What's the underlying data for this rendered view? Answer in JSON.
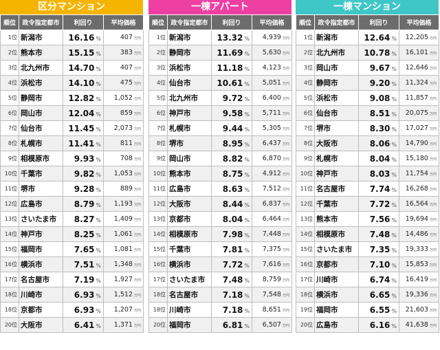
{
  "columns": {
    "rank": "順位",
    "city": "政令指定都市",
    "yield": "利回り",
    "price": "平均価格",
    "pct": "%",
    "unit": "万円",
    "rank_suffix": "位"
  },
  "panels": [
    {
      "title": "区分マンション",
      "color": "#f5b400",
      "rows": [
        {
          "rank": "1",
          "city": "新潟市",
          "yield": "16.16",
          "price": "407"
        },
        {
          "rank": "2",
          "city": "熊本市",
          "yield": "15.15",
          "price": "383"
        },
        {
          "rank": "3",
          "city": "北九州市",
          "yield": "14.70",
          "price": "407"
        },
        {
          "rank": "4",
          "city": "浜松市",
          "yield": "14.10",
          "price": "475"
        },
        {
          "rank": "5",
          "city": "静岡市",
          "yield": "12.82",
          "price": "1,052"
        },
        {
          "rank": "6",
          "city": "岡山市",
          "yield": "12.04",
          "price": "859"
        },
        {
          "rank": "7",
          "city": "仙台市",
          "yield": "11.45",
          "price": "2,073"
        },
        {
          "rank": "8",
          "city": "札幌市",
          "yield": "11.41",
          "price": "811"
        },
        {
          "rank": "9",
          "city": "相模原市",
          "yield": "9.93",
          "price": "708"
        },
        {
          "rank": "10",
          "city": "千葉市",
          "yield": "9.82",
          "price": "1,053"
        },
        {
          "rank": "11",
          "city": "堺市",
          "yield": "9.28",
          "price": "889"
        },
        {
          "rank": "12",
          "city": "広島市",
          "yield": "8.79",
          "price": "1,193"
        },
        {
          "rank": "13",
          "city": "さいたま市",
          "yield": "8.27",
          "price": "1,409"
        },
        {
          "rank": "14",
          "city": "神戸市",
          "yield": "8.25",
          "price": "1,061"
        },
        {
          "rank": "15",
          "city": "福岡市",
          "yield": "7.65",
          "price": "1,081"
        },
        {
          "rank": "16",
          "city": "横浜市",
          "yield": "7.51",
          "price": "1,348"
        },
        {
          "rank": "17",
          "city": "名古屋市",
          "yield": "7.19",
          "price": "1,927"
        },
        {
          "rank": "18",
          "city": "川崎市",
          "yield": "6.93",
          "price": "1,512"
        },
        {
          "rank": "18",
          "city": "京都市",
          "yield": "6.93",
          "price": "1,207"
        },
        {
          "rank": "20",
          "city": "大阪市",
          "yield": "6.41",
          "price": "1,371"
        }
      ]
    },
    {
      "title": "一棟アパート",
      "color": "#ee3fa2",
      "rows": [
        {
          "rank": "1",
          "city": "新潟市",
          "yield": "13.32",
          "price": "4,939"
        },
        {
          "rank": "2",
          "city": "静岡市",
          "yield": "11.69",
          "price": "5,630"
        },
        {
          "rank": "3",
          "city": "浜松市",
          "yield": "11.18",
          "price": "4,123"
        },
        {
          "rank": "4",
          "city": "仙台市",
          "yield": "10.61",
          "price": "5,051"
        },
        {
          "rank": "5",
          "city": "北九州市",
          "yield": "9.72",
          "price": "6,400"
        },
        {
          "rank": "6",
          "city": "神戸市",
          "yield": "9.58",
          "price": "5,711"
        },
        {
          "rank": "7",
          "city": "札幌市",
          "yield": "9.44",
          "price": "5,305"
        },
        {
          "rank": "8",
          "city": "堺市",
          "yield": "8.95",
          "price": "6,437"
        },
        {
          "rank": "9",
          "city": "岡山市",
          "yield": "8.82",
          "price": "6,870"
        },
        {
          "rank": "10",
          "city": "熊本市",
          "yield": "8.75",
          "price": "4,912"
        },
        {
          "rank": "11",
          "city": "広島市",
          "yield": "8.63",
          "price": "7,512"
        },
        {
          "rank": "12",
          "city": "大阪市",
          "yield": "8.44",
          "price": "6,837"
        },
        {
          "rank": "13",
          "city": "京都市",
          "yield": "8.04",
          "price": "6,464"
        },
        {
          "rank": "14",
          "city": "相模原市",
          "yield": "7.98",
          "price": "7,448"
        },
        {
          "rank": "15",
          "city": "千葉市",
          "yield": "7.81",
          "price": "7,375"
        },
        {
          "rank": "16",
          "city": "横浜市",
          "yield": "7.72",
          "price": "7,616"
        },
        {
          "rank": "17",
          "city": "さいたま市",
          "yield": "7.48",
          "price": "8,759"
        },
        {
          "rank": "18",
          "city": "名古屋市",
          "yield": "7.18",
          "price": "7,548"
        },
        {
          "rank": "18",
          "city": "川崎市",
          "yield": "7.18",
          "price": "8,651"
        },
        {
          "rank": "20",
          "city": "福岡市",
          "yield": "6.81",
          "price": "6,507"
        }
      ]
    },
    {
      "title": "一棟マンション",
      "color": "#3fc6c7",
      "rows": [
        {
          "rank": "1",
          "city": "新潟市",
          "yield": "12.64",
          "price": "12,205"
        },
        {
          "rank": "2",
          "city": "北九州市",
          "yield": "10.78",
          "price": "16,101"
        },
        {
          "rank": "3",
          "city": "岡山市",
          "yield": "9.67",
          "price": "12,646"
        },
        {
          "rank": "4",
          "city": "静岡市",
          "yield": "9.20",
          "price": "11,324"
        },
        {
          "rank": "5",
          "city": "浜松市",
          "yield": "9.08",
          "price": "11,857"
        },
        {
          "rank": "6",
          "city": "仙台市",
          "yield": "8.51",
          "price": "20,075"
        },
        {
          "rank": "7",
          "city": "堺市",
          "yield": "8.30",
          "price": "17,027"
        },
        {
          "rank": "8",
          "city": "大阪市",
          "yield": "8.06",
          "price": "14,790"
        },
        {
          "rank": "9",
          "city": "札幌市",
          "yield": "8.04",
          "price": "15,180"
        },
        {
          "rank": "10",
          "city": "神戸市",
          "yield": "8.03",
          "price": "11,754"
        },
        {
          "rank": "11",
          "city": "名古屋市",
          "yield": "7.74",
          "price": "16,268"
        },
        {
          "rank": "12",
          "city": "千葉市",
          "yield": "7.72",
          "price": "16,564"
        },
        {
          "rank": "13",
          "city": "熊本市",
          "yield": "7.56",
          "price": "19,694"
        },
        {
          "rank": "14",
          "city": "相模原市",
          "yield": "7.48",
          "price": "14,486"
        },
        {
          "rank": "15",
          "city": "さいたま市",
          "yield": "7.35",
          "price": "19,333"
        },
        {
          "rank": "16",
          "city": "京都市",
          "yield": "7.10",
          "price": "15,853"
        },
        {
          "rank": "17",
          "city": "川崎市",
          "yield": "6.74",
          "price": "16,419"
        },
        {
          "rank": "18",
          "city": "横浜市",
          "yield": "6.65",
          "price": "19,336"
        },
        {
          "rank": "19",
          "city": "福岡市",
          "yield": "6.55",
          "price": "21,603"
        },
        {
          "rank": "20",
          "city": "広島市",
          "yield": "6.16",
          "price": "41,638"
        }
      ]
    }
  ]
}
